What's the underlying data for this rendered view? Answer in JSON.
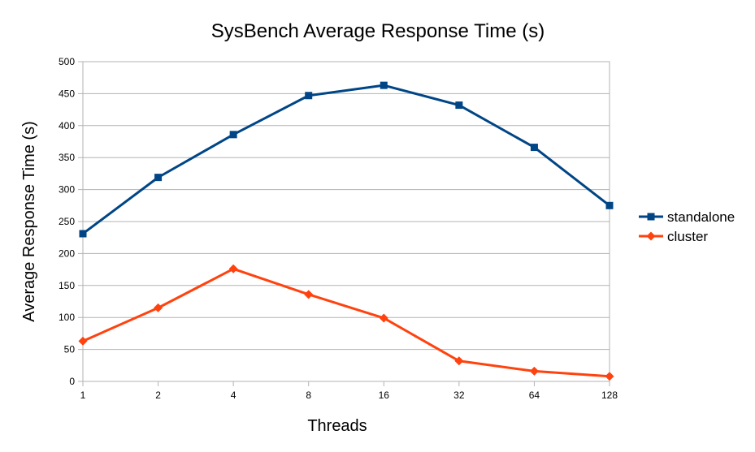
{
  "chart_data": {
    "type": "line",
    "title": "SysBench Average Response Time (s)",
    "xlabel": "Threads",
    "ylabel": "Average Response Time (s)",
    "categories": [
      "1",
      "2",
      "4",
      "8",
      "16",
      "32",
      "64",
      "128"
    ],
    "ylim": [
      0,
      500
    ],
    "yticks": [
      "0",
      "50",
      "100",
      "150",
      "200",
      "250",
      "300",
      "350",
      "400",
      "450",
      "500"
    ],
    "grid": true,
    "legend_position": "right",
    "series": [
      {
        "name": "standalone",
        "color": "#004586",
        "marker": "square",
        "values": [
          231,
          319,
          386,
          447,
          463,
          432,
          366,
          275
        ]
      },
      {
        "name": "cluster",
        "color": "#ff420e",
        "marker": "diamond",
        "values": [
          63,
          115,
          176,
          136,
          99,
          32,
          16,
          8
        ]
      }
    ]
  }
}
